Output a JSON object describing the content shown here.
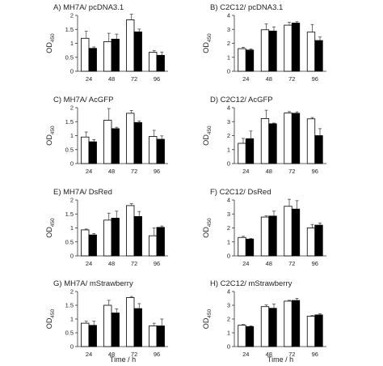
{
  "figure": {
    "x_axis_label": "Time / h"
  },
  "chart_data": [
    {
      "id": "A",
      "type": "bar",
      "title": "A) MH7A/ pcDNA3.1",
      "ylabel": "OD",
      "ylabel_sub": "450",
      "ylim": [
        0,
        2
      ],
      "yticks": [
        0,
        0.5,
        1,
        1.5,
        2
      ],
      "yticklabels": [
        "0",
        "0.5",
        "1",
        "1.5",
        "2"
      ],
      "categories": [
        "24",
        "48",
        "72",
        "96"
      ],
      "series": [
        {
          "color": "#ffffff",
          "values": [
            1.18,
            1.06,
            1.84,
            0.68
          ],
          "errors": [
            0.25,
            0.3,
            0.2,
            0.06
          ]
        },
        {
          "color": "#000000",
          "values": [
            0.82,
            1.15,
            1.41,
            0.57
          ],
          "errors": [
            0.05,
            0.18,
            0.1,
            0.12
          ]
        }
      ]
    },
    {
      "id": "B",
      "type": "bar",
      "title": "B) C2C12/ pcDNA3.1",
      "ylabel": "OD",
      "ylabel_sub": "450",
      "ylim": [
        0,
        4
      ],
      "yticks": [
        0,
        1,
        2,
        3,
        4
      ],
      "yticklabels": [
        "0",
        "1",
        "2",
        "3",
        "4"
      ],
      "categories": [
        "24",
        "48",
        "72",
        "96"
      ],
      "series": [
        {
          "color": "#ffffff",
          "values": [
            1.62,
            2.97,
            3.3,
            2.8
          ],
          "errors": [
            0.1,
            0.42,
            0.2,
            0.55
          ]
        },
        {
          "color": "#000000",
          "values": [
            1.52,
            2.88,
            3.45,
            2.2
          ],
          "errors": [
            0.08,
            0.3,
            0.1,
            0.25
          ]
        }
      ]
    },
    {
      "id": "C",
      "type": "bar",
      "title": "C) MH7A/ AcGFP",
      "ylabel": "OD",
      "ylabel_sub": "450",
      "ylim": [
        0,
        2
      ],
      "yticks": [
        0,
        0.5,
        1,
        1.5,
        2
      ],
      "yticklabels": [
        "0",
        "0.5",
        "1",
        "1.5",
        "2"
      ],
      "categories": [
        "24",
        "48",
        "72",
        "96"
      ],
      "series": [
        {
          "color": "#ffffff",
          "values": [
            0.95,
            1.55,
            1.8,
            0.97
          ],
          "errors": [
            0.18,
            0.42,
            0.1,
            0.22
          ]
        },
        {
          "color": "#000000",
          "values": [
            0.78,
            1.25,
            1.47,
            0.87
          ],
          "errors": [
            0.08,
            0.05,
            0.05,
            0.12
          ]
        }
      ]
    },
    {
      "id": "D",
      "type": "bar",
      "title": "D) C2C12/ AcGFP",
      "ylabel": "OD",
      "ylabel_sub": "450",
      "ylim": [
        0,
        4
      ],
      "yticks": [
        0,
        1,
        2,
        3,
        4
      ],
      "yticklabels": [
        "0",
        "1",
        "2",
        "3",
        "4"
      ],
      "categories": [
        "24",
        "48",
        "72",
        "96"
      ],
      "series": [
        {
          "color": "#ffffff",
          "values": [
            1.45,
            3.22,
            3.62,
            3.2
          ],
          "errors": [
            0.35,
            0.6,
            0.1,
            0.1
          ]
        },
        {
          "color": "#000000",
          "values": [
            1.78,
            2.85,
            3.6,
            2.0
          ],
          "errors": [
            0.55,
            0.05,
            0.1,
            0.5
          ]
        }
      ]
    },
    {
      "id": "E",
      "type": "bar",
      "title": "E) MH7A/ DsRed",
      "ylabel": "OD",
      "ylabel_sub": "450",
      "ylim": [
        0,
        2
      ],
      "yticks": [
        0,
        0.5,
        1,
        1.5,
        2
      ],
      "yticklabels": [
        "0",
        "0.5",
        "1",
        "1.5",
        "2"
      ],
      "categories": [
        "24",
        "48",
        "72",
        "96"
      ],
      "series": [
        {
          "color": "#ffffff",
          "values": [
            0.93,
            1.28,
            1.8,
            0.72
          ],
          "errors": [
            0.03,
            0.25,
            0.07,
            0.28
          ]
        },
        {
          "color": "#000000",
          "values": [
            0.75,
            1.35,
            1.41,
            1.02
          ],
          "errors": [
            0.05,
            0.25,
            0.18,
            0.05
          ]
        }
      ]
    },
    {
      "id": "F",
      "type": "bar",
      "title": "F) C2C12/ DsRed",
      "ylabel": "OD",
      "ylabel_sub": "450",
      "ylim": [
        0,
        4
      ],
      "yticks": [
        0,
        1,
        2,
        3,
        4
      ],
      "yticklabels": [
        "0",
        "1",
        "2",
        "3",
        "4"
      ],
      "categories": [
        "24",
        "48",
        "72",
        "96"
      ],
      "series": [
        {
          "color": "#ffffff",
          "values": [
            1.32,
            2.78,
            3.55,
            2.0
          ],
          "errors": [
            0.08,
            0.08,
            0.5,
            0.25
          ]
        },
        {
          "color": "#000000",
          "values": [
            1.2,
            2.85,
            3.35,
            2.2
          ],
          "errors": [
            0.05,
            0.35,
            0.6,
            0.15
          ]
        }
      ]
    },
    {
      "id": "G",
      "type": "bar",
      "title": "G) MH7A/ mStrawberry",
      "ylabel": "OD",
      "ylabel_sub": "450",
      "ylim": [
        0,
        2
      ],
      "yticks": [
        0,
        0.5,
        1,
        1.5,
        2
      ],
      "yticklabels": [
        "0",
        "0.5",
        "1",
        "1.5",
        "2"
      ],
      "categories": [
        "24",
        "48",
        "72",
        "96"
      ],
      "series": [
        {
          "color": "#ffffff",
          "values": [
            0.85,
            1.5,
            1.78,
            0.75
          ],
          "errors": [
            0.07,
            0.18,
            0.04,
            0.1
          ]
        },
        {
          "color": "#000000",
          "values": [
            0.77,
            1.22,
            1.38,
            0.75
          ],
          "errors": [
            0.15,
            0.15,
            0.18,
            0.25
          ]
        }
      ]
    },
    {
      "id": "H",
      "type": "bar",
      "title": "H) C2C12/ mStrawberry",
      "ylabel": "OD",
      "ylabel_sub": "450",
      "ylim": [
        0,
        4
      ],
      "yticks": [
        0,
        1,
        2,
        3,
        4
      ],
      "yticklabels": [
        "0",
        "1",
        "2",
        "3",
        "4"
      ],
      "categories": [
        "24",
        "48",
        "72",
        "96"
      ],
      "series": [
        {
          "color": "#ffffff",
          "values": [
            1.55,
            2.9,
            3.3,
            2.2
          ],
          "errors": [
            0.05,
            0.12,
            0.06,
            0.05
          ]
        },
        {
          "color": "#000000",
          "values": [
            1.45,
            2.78,
            3.35,
            2.3
          ],
          "errors": [
            0.05,
            0.3,
            0.15,
            0.08
          ]
        }
      ]
    }
  ]
}
